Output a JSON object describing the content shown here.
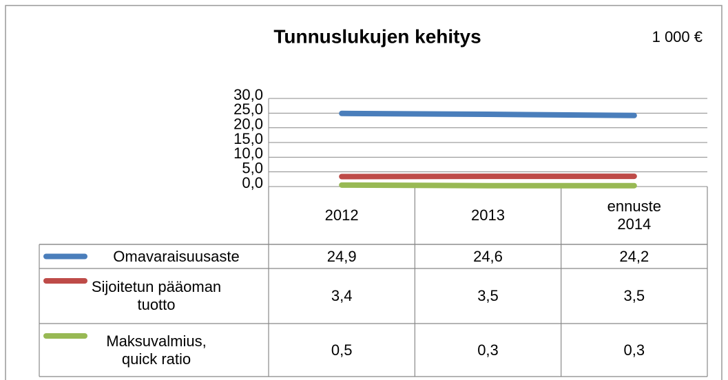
{
  "chart_data": {
    "type": "line",
    "title": "Tunnuslukujen kehitys",
    "subtitle": "1 000 €",
    "categories": [
      "2012",
      "2013",
      "ennuste 2014"
    ],
    "series": [
      {
        "name": "Omavaraisuusaste",
        "color": "#4a7ebb",
        "values": [
          24.9,
          24.6,
          24.2
        ],
        "value_labels": [
          "24,9",
          "24,6",
          "24,2"
        ]
      },
      {
        "name": "Sijoitetun pääoman tuotto",
        "color": "#be4b48",
        "values": [
          3.4,
          3.5,
          3.5
        ],
        "value_labels": [
          "3,4",
          "3,5",
          "3,5"
        ]
      },
      {
        "name": "Maksuvalmius, quick ratio",
        "color": "#98b954",
        "values": [
          0.5,
          0.3,
          0.3
        ],
        "value_labels": [
          "0,5",
          "0,3",
          "0,3"
        ]
      }
    ],
    "ylim": [
      0,
      30
    ],
    "yticks": [
      {
        "value": 0,
        "label": "0,0"
      },
      {
        "value": 5,
        "label": "5,0"
      },
      {
        "value": 10,
        "label": "10,0"
      },
      {
        "value": 15,
        "label": "15,0"
      },
      {
        "value": 20,
        "label": "20,0"
      },
      {
        "value": 25,
        "label": "25,0"
      },
      {
        "value": 30,
        "label": "30,0"
      }
    ],
    "grid": true
  }
}
